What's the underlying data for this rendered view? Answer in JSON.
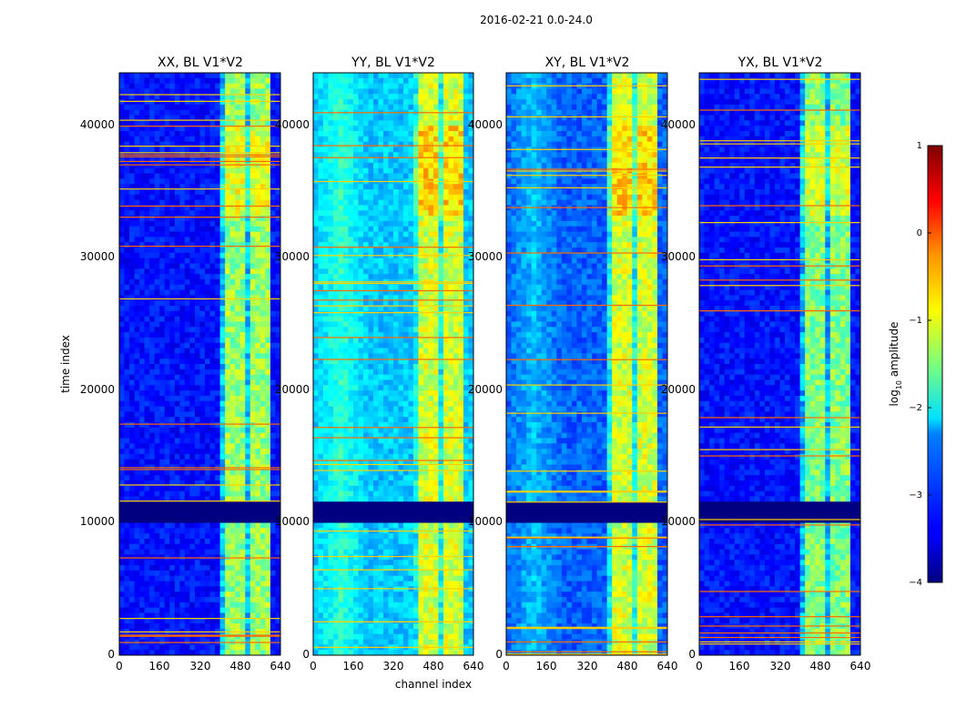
{
  "chart_data": {
    "type": "heatmap",
    "suptitle": "2016-02-21 0.0-24.0",
    "xlabel": "channel index",
    "ylabel": "time index",
    "xlim": [
      0,
      640
    ],
    "ylim": [
      0,
      44000
    ],
    "xticks": [
      0,
      160,
      320,
      480,
      640
    ],
    "yticks": [
      0,
      10000,
      20000,
      30000,
      40000
    ],
    "panels": [
      {
        "title": "XX, BL V1*V2",
        "background_level": -3.3,
        "band_channels": [
          400,
          600
        ],
        "band_level": -1.4,
        "edge_glow": false
      },
      {
        "title": "YY, BL V1*V2",
        "background_level": -2.4,
        "band_channels": [
          400,
          600
        ],
        "band_level": -1.1,
        "edge_glow": true
      },
      {
        "title": "XY, BL V1*V2",
        "background_level": -2.9,
        "band_channels": [
          400,
          600
        ],
        "band_level": -1.1,
        "edge_glow": true
      },
      {
        "title": "YX, BL V1*V2",
        "background_level": -3.3,
        "band_channels": [
          400,
          600
        ],
        "band_level": -1.5,
        "edge_glow": false
      }
    ],
    "flagged_time_gap": [
      10200,
      11500
    ],
    "colorbar": {
      "label_main": "log",
      "label_sub": "10",
      "label_tail": " amplitude",
      "range": [
        -4,
        1
      ],
      "ticks": [
        {
          "value": 1,
          "label": "1"
        },
        {
          "value": 0,
          "label": "0"
        },
        {
          "value": -1,
          "label": "−1"
        },
        {
          "value": -2,
          "label": "−2"
        },
        {
          "value": -3,
          "label": "−3"
        },
        {
          "value": -4,
          "label": "−4"
        }
      ],
      "colormap": "jet"
    }
  }
}
